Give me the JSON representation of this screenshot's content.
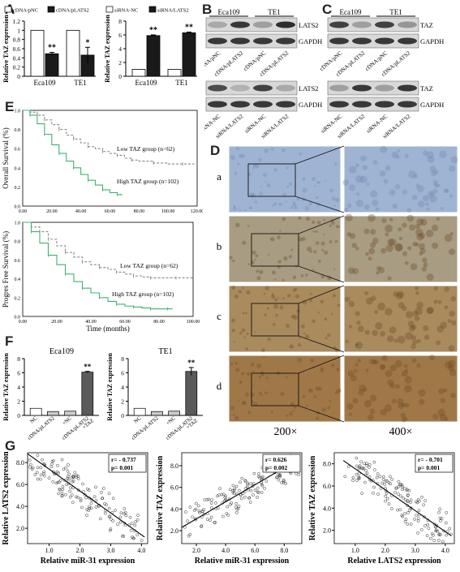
{
  "panels": {
    "A": "A",
    "B": "B",
    "C": "C",
    "D": "D",
    "E": "E",
    "F": "F",
    "G": "G"
  },
  "colors": {
    "black_bar": "#1a1a1a",
    "white_bar": "#ffffff",
    "gray_bar": "#5a5a5a",
    "lightgray_bar": "#c9c9c9",
    "green_curve": "#3cb371",
    "gray_curve": "#888888",
    "ihc_blue": "#9fb4d2",
    "ihc_brown": "#a07848"
  },
  "chart_data": [
    {
      "id": "A-left",
      "type": "bar",
      "legend": [
        "cDNA/pNC",
        "cDNA/pLATS2"
      ],
      "categories": [
        "Eca109",
        "TE1"
      ],
      "series": [
        {
          "name": "cDNA/pNC",
          "values": [
            1.0,
            1.0
          ]
        },
        {
          "name": "cDNA/pLATS2",
          "values": [
            0.49,
            0.46
          ]
        }
      ],
      "errors": [
        [
          0,
          0
        ],
        [
          0.03,
          0.17
        ]
      ],
      "sig": [
        "**",
        "*"
      ],
      "ylabel": "Relative TAZ expression",
      "ylim": [
        0,
        1.2
      ],
      "yticks": [
        "0",
        "0.2",
        "0.4",
        "0.6",
        "0.8",
        "1",
        "1.2"
      ]
    },
    {
      "id": "A-right",
      "type": "bar",
      "legend": [
        "siRNA-NC",
        "siRNA/LATS2"
      ],
      "categories": [
        "Eca109",
        "TE1"
      ],
      "series": [
        {
          "name": "siRNA-NC",
          "values": [
            1.0,
            1.0
          ]
        },
        {
          "name": "siRNA/LATS2",
          "values": [
            5.9,
            6.3
          ]
        }
      ],
      "errors": [
        [
          0,
          0
        ],
        [
          0.1,
          0.1
        ]
      ],
      "sig": [
        "**",
        "**"
      ],
      "ylabel": "Relative TAZ expression",
      "ylim": [
        0,
        8
      ],
      "yticks": [
        "0",
        "2",
        "4",
        "6",
        "8"
      ]
    },
    {
      "id": "E-top",
      "type": "line",
      "ylabel": "Overall Survival (%)",
      "xticks": [
        "0.00",
        "20.00",
        "40.00",
        "60.00",
        "80.00",
        "100.00",
        "120.00"
      ],
      "yticks": [
        "0.0",
        "0.2",
        "0.4",
        "0.6",
        "0.8",
        "1.0"
      ],
      "xlim": [
        0,
        120
      ],
      "ylim": [
        0,
        1
      ],
      "series": [
        {
          "name": "Low TAZ group (n=62)",
          "x": [
            0,
            5,
            10,
            15,
            20,
            25,
            30,
            35,
            40,
            45,
            50,
            55,
            60,
            65,
            70,
            75,
            80,
            90,
            100,
            110,
            118
          ],
          "y": [
            1,
            0.98,
            0.95,
            0.9,
            0.85,
            0.8,
            0.74,
            0.7,
            0.66,
            0.62,
            0.6,
            0.57,
            0.55,
            0.53,
            0.5,
            0.48,
            0.47,
            0.45,
            0.44,
            0.44,
            0.44
          ]
        },
        {
          "name": "High TAZ group (n=102)",
          "x": [
            0,
            5,
            10,
            15,
            20,
            25,
            30,
            35,
            40,
            45,
            50,
            55,
            60,
            65,
            68
          ],
          "y": [
            1,
            0.95,
            0.86,
            0.75,
            0.64,
            0.55,
            0.47,
            0.4,
            0.33,
            0.27,
            0.22,
            0.17,
            0.14,
            0.12,
            0.11
          ]
        }
      ]
    },
    {
      "id": "E-bottom",
      "type": "line",
      "ylabel": "Progres Free Survival (%)",
      "xlabel": "Time (months)",
      "xticks": [
        "0.00",
        "20.00",
        "40.00",
        "60.00",
        "80.00",
        "100.00"
      ],
      "yticks": [
        "0.0",
        "0.2",
        "0.4",
        "0.6",
        "0.8",
        "1.0"
      ],
      "xlim": [
        0,
        100
      ],
      "ylim": [
        0,
        1
      ],
      "series": [
        {
          "name": "Low TAZ group (n=62)",
          "x": [
            0,
            5,
            10,
            15,
            20,
            25,
            30,
            35,
            40,
            45,
            50,
            55,
            60,
            65,
            70,
            75,
            80,
            90,
            100
          ],
          "y": [
            1,
            0.95,
            0.9,
            0.82,
            0.75,
            0.68,
            0.63,
            0.58,
            0.55,
            0.52,
            0.5,
            0.47,
            0.45,
            0.43,
            0.42,
            0.41,
            0.41,
            0.41,
            0.41
          ]
        },
        {
          "name": "High TAZ group (n=102)",
          "x": [
            0,
            5,
            10,
            15,
            20,
            25,
            30,
            35,
            40,
            45,
            50,
            55,
            60,
            65,
            70,
            75,
            80,
            85,
            88
          ],
          "y": [
            1,
            0.9,
            0.78,
            0.65,
            0.55,
            0.45,
            0.37,
            0.3,
            0.25,
            0.2,
            0.16,
            0.13,
            0.11,
            0.1,
            0.09,
            0.08,
            0.08,
            0.08,
            0.08
          ]
        }
      ]
    },
    {
      "id": "F-left",
      "type": "bar",
      "title": "Eca109",
      "categories": [
        "NC",
        "cDNA/pLATS2",
        "+NC",
        "cDNA/pLATS2 +TAZ"
      ],
      "values": [
        1.0,
        0.55,
        0.6,
        6.1
      ],
      "errors": [
        0,
        0,
        0,
        0.1
      ],
      "sig": [
        "",
        "",
        "",
        "**"
      ],
      "ylabel": "Relative TAZ expression",
      "ylim": [
        0,
        8
      ],
      "yticks": [
        "0",
        "2",
        "4",
        "6",
        "8"
      ]
    },
    {
      "id": "F-right",
      "type": "bar",
      "title": "TE1",
      "categories": [
        "NC",
        "cDNA/pLATS2",
        "+NC",
        "cDNA/pLATS2 +TAZ"
      ],
      "values": [
        1.0,
        0.55,
        0.6,
        6.2
      ],
      "errors": [
        0,
        0,
        0,
        0.55
      ],
      "sig": [
        "",
        "",
        "",
        "**"
      ],
      "ylabel": "Relative TAZ expression",
      "ylim": [
        0,
        8
      ],
      "yticks": [
        "0",
        "2",
        "4",
        "6",
        "8"
      ]
    },
    {
      "id": "G1",
      "type": "scatter",
      "stat_r": "r= - 0.737",
      "stat_p": "p= 0.001",
      "xlabel": "Relative miR-31 expression",
      "ylabel": "Relative LATS2 expression",
      "xticks": [
        "1.0",
        "2.0",
        "3.0",
        "4.0"
      ],
      "yticks": [
        "2.0",
        "4.0",
        "6.0",
        "8.0"
      ],
      "xlim": [
        0.3,
        4.2
      ],
      "ylim": [
        0.6,
        8.9
      ],
      "fit": {
        "x": [
          0.3,
          4.1
        ],
        "y": [
          8.8,
          1.2
        ]
      }
    },
    {
      "id": "G2",
      "type": "scatter",
      "stat_r": "r= 0.626",
      "stat_p": "p= 0.002",
      "xlabel": "Relative miR-31 expression",
      "ylabel": "Relative TAZ expression",
      "xticks": [
        "2.0",
        "4.0",
        "6.0",
        "8.0"
      ],
      "yticks": [
        "2.0",
        "4.0",
        "6.0",
        "8.0"
      ],
      "xlim": [
        1.0,
        9.2
      ],
      "ylim": [
        0.8,
        9.2
      ],
      "fit": {
        "x": [
          1.0,
          9.0
        ],
        "y": [
          2.3,
          8.6
        ]
      }
    },
    {
      "id": "G3",
      "type": "scatter",
      "stat_r": "r= - 0.701",
      "stat_p": "p= 0.001",
      "xlabel": "Relative LATS2 expression",
      "ylabel": "Relative TAZ expression",
      "xticks": [
        "1.0",
        "2.0",
        "3.0",
        "4.0"
      ],
      "yticks": [
        "2.0",
        "4.0",
        "6.0",
        "8.0"
      ],
      "xlim": [
        0.3,
        4.3
      ],
      "ylim": [
        0.8,
        9.0
      ],
      "fit": {
        "x": [
          0.6,
          4.2
        ],
        "y": [
          8.3,
          1.5
        ]
      }
    }
  ],
  "blots": {
    "B_top_header": [
      "Eca109",
      "TE1"
    ],
    "B_bands": [
      "LATS2",
      "GAPDH"
    ],
    "B_top_lanes": [
      "cDNA/pNC",
      "cDNA/pLATS2",
      "cDNA/pNC",
      "cDNA/pLATS2"
    ],
    "B_bot_lanes": [
      "siRNA-NC",
      "siRNA/LATS2",
      "siRNA-NC",
      "siRNA/LATS2"
    ],
    "C_top_header": [
      "Eca109",
      "TE1"
    ],
    "C_bands": [
      "TAZ",
      "GAPDH"
    ],
    "C_top_lanes": [
      "cDNA/pNC",
      "cDNA/pLATS2",
      "cDNA/pNC",
      "cDNA/pLATS2"
    ],
    "C_bot_lanes": [
      "siRNA-NC",
      "siRNA/LATS2",
      "siRNA-NC",
      "siRNA/LATS2"
    ]
  },
  "ihc": {
    "rows": [
      "a",
      "b",
      "c",
      "d"
    ],
    "mag_left": "200×",
    "mag_right": "400×"
  }
}
